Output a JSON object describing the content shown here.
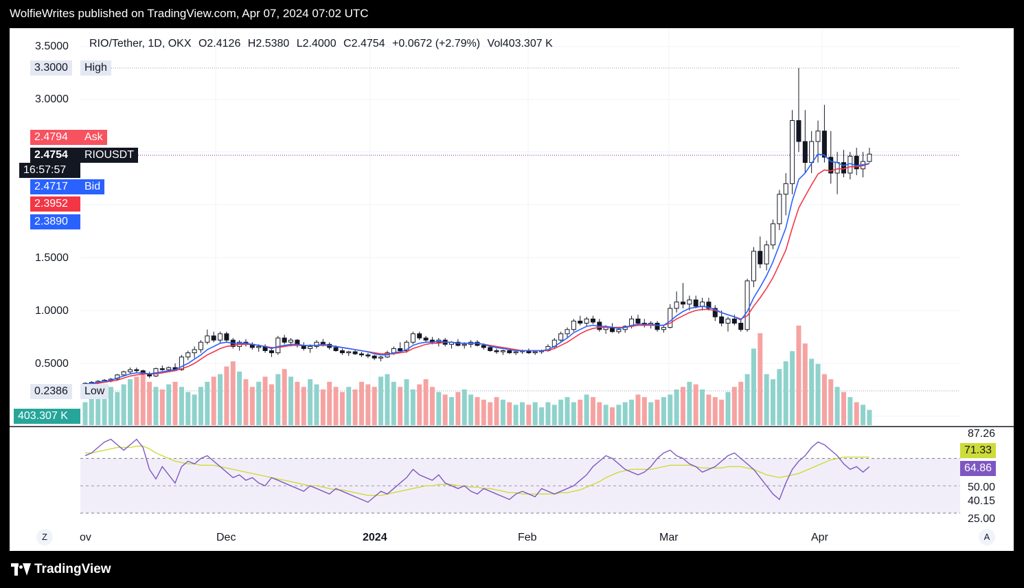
{
  "header": {
    "publisher": "WolfieWrites published on TradingView.com, Apr 07, 2024 07:02 UTC"
  },
  "footer": {
    "brand": "TradingView"
  },
  "chart_data": {
    "type": "candlestick",
    "symbol_line": "RIO/Tether, 1D, OKX",
    "ohlc": {
      "open": "O2.4126",
      "high": "H2.5380",
      "low": "L2.4000",
      "close": "C2.4754",
      "change": "+0.0672 (+2.79%)",
      "volume": "Vol403.307 K"
    },
    "price_axis_labels": [
      "3.5000",
      "3.0000",
      "1.5000",
      "1.0000",
      "0.5000"
    ],
    "time_axis_labels": [
      "ov",
      "Dec",
      "2024",
      "Feb",
      "Mar",
      "Apr"
    ],
    "markers": {
      "high": {
        "value": "3.3000",
        "label": "High"
      },
      "low": {
        "value": "0.2386",
        "label": "Low"
      },
      "ask": {
        "value": "2.4794",
        "label": "Ask"
      },
      "last": {
        "value": "2.4754",
        "label": "RIOUSDT",
        "countdown": "16:57:57"
      },
      "bid": {
        "value": "2.4717",
        "label": "Bid"
      },
      "ma_red": "2.3952",
      "ma_blue": "2.3890",
      "volume": "403.307 K"
    },
    "rsi": {
      "axis_labels": [
        "87.26",
        "50.00",
        "40.15",
        "25.00"
      ],
      "rsi_ma_value": "71.33",
      "rsi_value": "64.86"
    },
    "buttons": {
      "left": "Z",
      "right": "A"
    },
    "colors": {
      "up": "#26a69a",
      "down": "#ef5350",
      "ma_fast": "#2962ff",
      "ma_slow": "#f23645",
      "rsi": "#7e57c2",
      "rsi_ma": "#cddc39",
      "tag_ask": "#f7525f",
      "tag_bid": "#2962ff"
    },
    "candles": [
      [
        0.3,
        0.32,
        0.29,
        0.31
      ],
      [
        0.31,
        0.33,
        0.3,
        0.32
      ],
      [
        0.32,
        0.34,
        0.31,
        0.33
      ],
      [
        0.33,
        0.35,
        0.32,
        0.34
      ],
      [
        0.34,
        0.36,
        0.32,
        0.35
      ],
      [
        0.35,
        0.4,
        0.34,
        0.39
      ],
      [
        0.39,
        0.43,
        0.38,
        0.42
      ],
      [
        0.42,
        0.46,
        0.4,
        0.44
      ],
      [
        0.44,
        0.46,
        0.41,
        0.43
      ],
      [
        0.43,
        0.44,
        0.39,
        0.4
      ],
      [
        0.4,
        0.42,
        0.36,
        0.38
      ],
      [
        0.38,
        0.46,
        0.37,
        0.45
      ],
      [
        0.45,
        0.48,
        0.43,
        0.44
      ],
      [
        0.44,
        0.47,
        0.42,
        0.46
      ],
      [
        0.46,
        0.5,
        0.43,
        0.44
      ],
      [
        0.44,
        0.58,
        0.43,
        0.56
      ],
      [
        0.56,
        0.62,
        0.53,
        0.6
      ],
      [
        0.6,
        0.66,
        0.55,
        0.63
      ],
      [
        0.63,
        0.72,
        0.6,
        0.7
      ],
      [
        0.7,
        0.82,
        0.68,
        0.76
      ],
      [
        0.76,
        0.8,
        0.7,
        0.72
      ],
      [
        0.72,
        0.8,
        0.69,
        0.78
      ],
      [
        0.78,
        0.8,
        0.7,
        0.72
      ],
      [
        0.72,
        0.74,
        0.64,
        0.66
      ],
      [
        0.66,
        0.72,
        0.62,
        0.7
      ],
      [
        0.7,
        0.73,
        0.66,
        0.68
      ],
      [
        0.68,
        0.7,
        0.63,
        0.65
      ],
      [
        0.65,
        0.68,
        0.61,
        0.66
      ],
      [
        0.66,
        0.68,
        0.6,
        0.62
      ],
      [
        0.62,
        0.65,
        0.56,
        0.6
      ],
      [
        0.6,
        0.76,
        0.58,
        0.74
      ],
      [
        0.74,
        0.77,
        0.68,
        0.7
      ],
      [
        0.7,
        0.74,
        0.66,
        0.72
      ],
      [
        0.72,
        0.73,
        0.65,
        0.67
      ],
      [
        0.67,
        0.7,
        0.62,
        0.64
      ],
      [
        0.64,
        0.68,
        0.6,
        0.66
      ],
      [
        0.66,
        0.72,
        0.64,
        0.7
      ],
      [
        0.7,
        0.73,
        0.66,
        0.68
      ],
      [
        0.68,
        0.7,
        0.63,
        0.65
      ],
      [
        0.65,
        0.67,
        0.61,
        0.62
      ],
      [
        0.62,
        0.64,
        0.58,
        0.6
      ],
      [
        0.6,
        0.62,
        0.57,
        0.61
      ],
      [
        0.61,
        0.63,
        0.58,
        0.59
      ],
      [
        0.59,
        0.61,
        0.56,
        0.58
      ],
      [
        0.58,
        0.6,
        0.55,
        0.57
      ],
      [
        0.57,
        0.58,
        0.53,
        0.55
      ],
      [
        0.55,
        0.57,
        0.52,
        0.56
      ],
      [
        0.56,
        0.62,
        0.55,
        0.6
      ],
      [
        0.6,
        0.66,
        0.58,
        0.64
      ],
      [
        0.64,
        0.7,
        0.6,
        0.62
      ],
      [
        0.62,
        0.72,
        0.6,
        0.7
      ],
      [
        0.7,
        0.8,
        0.68,
        0.78
      ],
      [
        0.78,
        0.8,
        0.72,
        0.74
      ],
      [
        0.74,
        0.76,
        0.7,
        0.72
      ],
      [
        0.72,
        0.75,
        0.68,
        0.7
      ],
      [
        0.7,
        0.74,
        0.66,
        0.72
      ],
      [
        0.72,
        0.74,
        0.66,
        0.68
      ],
      [
        0.68,
        0.71,
        0.64,
        0.7
      ],
      [
        0.7,
        0.73,
        0.66,
        0.67
      ],
      [
        0.67,
        0.7,
        0.64,
        0.68
      ],
      [
        0.68,
        0.72,
        0.65,
        0.7
      ],
      [
        0.7,
        0.72,
        0.66,
        0.67
      ],
      [
        0.67,
        0.69,
        0.63,
        0.65
      ],
      [
        0.65,
        0.67,
        0.61,
        0.62
      ],
      [
        0.62,
        0.64,
        0.59,
        0.61
      ],
      [
        0.61,
        0.63,
        0.58,
        0.62
      ],
      [
        0.62,
        0.64,
        0.59,
        0.6
      ],
      [
        0.6,
        0.62,
        0.58,
        0.61
      ],
      [
        0.61,
        0.63,
        0.59,
        0.62
      ],
      [
        0.62,
        0.64,
        0.59,
        0.6
      ],
      [
        0.6,
        0.62,
        0.58,
        0.61
      ],
      [
        0.61,
        0.63,
        0.59,
        0.62
      ],
      [
        0.62,
        0.68,
        0.61,
        0.66
      ],
      [
        0.66,
        0.74,
        0.64,
        0.72
      ],
      [
        0.72,
        0.8,
        0.7,
        0.78
      ],
      [
        0.78,
        0.84,
        0.74,
        0.82
      ],
      [
        0.82,
        0.92,
        0.8,
        0.9
      ],
      [
        0.9,
        0.95,
        0.86,
        0.88
      ],
      [
        0.88,
        0.94,
        0.85,
        0.92
      ],
      [
        0.92,
        0.95,
        0.87,
        0.89
      ],
      [
        0.89,
        0.92,
        0.8,
        0.82
      ],
      [
        0.82,
        0.86,
        0.78,
        0.84
      ],
      [
        0.84,
        0.88,
        0.79,
        0.8
      ],
      [
        0.8,
        0.84,
        0.78,
        0.82
      ],
      [
        0.82,
        0.86,
        0.79,
        0.85
      ],
      [
        0.85,
        0.95,
        0.83,
        0.92
      ],
      [
        0.92,
        0.96,
        0.86,
        0.88
      ],
      [
        0.88,
        0.92,
        0.84,
        0.86
      ],
      [
        0.86,
        0.9,
        0.83,
        0.88
      ],
      [
        0.88,
        0.9,
        0.8,
        0.82
      ],
      [
        0.82,
        0.86,
        0.79,
        0.84
      ],
      [
        0.84,
        1.06,
        0.83,
        1.02
      ],
      [
        1.02,
        1.18,
        0.98,
        1.08
      ],
      [
        1.08,
        1.26,
        1.02,
        1.06
      ],
      [
        1.06,
        1.14,
        1.0,
        1.1
      ],
      [
        1.1,
        1.14,
        1.02,
        1.04
      ],
      [
        1.04,
        1.12,
        1.0,
        1.08
      ],
      [
        1.08,
        1.12,
        1.0,
        1.02
      ],
      [
        1.02,
        1.05,
        0.9,
        0.94
      ],
      [
        0.94,
        1.0,
        0.85,
        0.88
      ],
      [
        0.88,
        0.94,
        0.8,
        0.92
      ],
      [
        0.92,
        0.96,
        0.86,
        0.88
      ],
      [
        0.88,
        0.92,
        0.8,
        0.82
      ],
      [
        0.82,
        1.3,
        0.8,
        1.28
      ],
      [
        1.28,
        1.6,
        1.22,
        1.56
      ],
      [
        1.56,
        1.7,
        1.4,
        1.44
      ],
      [
        1.44,
        1.66,
        1.38,
        1.62
      ],
      [
        1.62,
        1.86,
        1.58,
        1.82
      ],
      [
        1.82,
        2.14,
        1.76,
        2.1
      ],
      [
        2.1,
        2.3,
        1.9,
        2.2
      ],
      [
        2.2,
        2.9,
        2.1,
        2.8
      ],
      [
        2.8,
        3.3,
        2.5,
        2.6
      ],
      [
        2.6,
        2.9,
        2.3,
        2.4
      ],
      [
        2.4,
        2.7,
        2.3,
        2.6
      ],
      [
        2.6,
        2.8,
        2.4,
        2.7
      ],
      [
        2.7,
        2.95,
        2.4,
        2.45
      ],
      [
        2.45,
        2.7,
        2.2,
        2.3
      ],
      [
        2.3,
        2.5,
        2.1,
        2.4
      ],
      [
        2.4,
        2.52,
        2.26,
        2.3
      ],
      [
        2.3,
        2.5,
        2.24,
        2.46
      ],
      [
        2.46,
        2.54,
        2.28,
        2.34
      ],
      [
        2.34,
        2.5,
        2.26,
        2.41
      ],
      [
        2.41,
        2.54,
        2.4,
        2.48
      ]
    ],
    "ma_fast": [
      0.3,
      0.31,
      0.32,
      0.33,
      0.34,
      0.36,
      0.38,
      0.4,
      0.41,
      0.41,
      0.4,
      0.41,
      0.42,
      0.43,
      0.44,
      0.47,
      0.5,
      0.54,
      0.58,
      0.63,
      0.66,
      0.69,
      0.7,
      0.69,
      0.69,
      0.69,
      0.68,
      0.67,
      0.66,
      0.64,
      0.66,
      0.67,
      0.68,
      0.68,
      0.67,
      0.67,
      0.67,
      0.68,
      0.67,
      0.66,
      0.65,
      0.64,
      0.63,
      0.62,
      0.61,
      0.59,
      0.58,
      0.58,
      0.6,
      0.61,
      0.63,
      0.67,
      0.69,
      0.7,
      0.7,
      0.71,
      0.7,
      0.7,
      0.69,
      0.69,
      0.69,
      0.69,
      0.68,
      0.66,
      0.65,
      0.64,
      0.63,
      0.62,
      0.62,
      0.62,
      0.62,
      0.62,
      0.63,
      0.66,
      0.7,
      0.74,
      0.79,
      0.82,
      0.85,
      0.86,
      0.85,
      0.85,
      0.84,
      0.83,
      0.84,
      0.86,
      0.87,
      0.87,
      0.87,
      0.86,
      0.86,
      0.9,
      0.95,
      0.99,
      1.02,
      1.03,
      1.04,
      1.03,
      1.01,
      0.98,
      0.96,
      0.94,
      0.91,
      0.99,
      1.12,
      1.22,
      1.33,
      1.46,
      1.62,
      1.78,
      2.04,
      2.24,
      2.3,
      2.39,
      2.48,
      2.47,
      2.41,
      2.4,
      2.37,
      2.39,
      2.37,
      2.38,
      2.39
    ],
    "ma_slow": [
      0.29,
      0.3,
      0.31,
      0.32,
      0.33,
      0.34,
      0.36,
      0.38,
      0.39,
      0.4,
      0.4,
      0.4,
      0.41,
      0.42,
      0.43,
      0.45,
      0.47,
      0.5,
      0.54,
      0.58,
      0.61,
      0.64,
      0.66,
      0.67,
      0.68,
      0.68,
      0.68,
      0.67,
      0.66,
      0.65,
      0.65,
      0.66,
      0.67,
      0.67,
      0.67,
      0.67,
      0.67,
      0.67,
      0.67,
      0.66,
      0.65,
      0.64,
      0.63,
      0.62,
      0.61,
      0.6,
      0.59,
      0.59,
      0.59,
      0.6,
      0.61,
      0.64,
      0.66,
      0.68,
      0.69,
      0.69,
      0.7,
      0.7,
      0.69,
      0.69,
      0.69,
      0.69,
      0.68,
      0.67,
      0.66,
      0.65,
      0.64,
      0.63,
      0.62,
      0.62,
      0.62,
      0.62,
      0.62,
      0.64,
      0.67,
      0.7,
      0.74,
      0.78,
      0.81,
      0.83,
      0.84,
      0.84,
      0.84,
      0.84,
      0.84,
      0.85,
      0.86,
      0.86,
      0.86,
      0.86,
      0.86,
      0.88,
      0.92,
      0.95,
      0.98,
      1.0,
      1.01,
      1.01,
      1.0,
      0.98,
      0.96,
      0.94,
      0.92,
      0.95,
      1.04,
      1.12,
      1.21,
      1.31,
      1.44,
      1.57,
      1.78,
      1.97,
      2.08,
      2.19,
      2.29,
      2.33,
      2.32,
      2.34,
      2.34,
      2.36,
      2.36,
      2.37,
      2.39
    ],
    "volume": [
      18,
      22,
      25,
      28,
      30,
      26,
      32,
      36,
      38,
      40,
      34,
      30,
      28,
      32,
      34,
      30,
      26,
      24,
      30,
      34,
      38,
      40,
      46,
      50,
      42,
      36,
      30,
      34,
      38,
      32,
      40,
      44,
      38,
      34,
      30,
      36,
      32,
      28,
      34,
      30,
      26,
      30,
      28,
      34,
      32,
      30,
      38,
      40,
      34,
      30,
      36,
      28,
      32,
      36,
      30,
      26,
      24,
      22,
      26,
      28,
      24,
      22,
      20,
      18,
      22,
      20,
      18,
      16,
      18,
      16,
      18,
      14,
      18,
      16,
      20,
      22,
      18,
      20,
      24,
      22,
      18,
      16,
      14,
      16,
      18,
      20,
      24,
      22,
      18,
      20,
      22,
      24,
      28,
      30,
      34,
      32,
      28,
      24,
      22,
      20,
      26,
      30,
      34,
      40,
      60,
      72,
      40,
      36,
      44,
      50,
      58,
      78,
      64,
      52,
      48,
      40,
      36,
      30,
      26,
      22,
      18,
      16,
      12
    ],
    "volume_up": [
      1,
      1,
      1,
      1,
      1,
      1,
      1,
      1,
      0,
      0,
      0,
      1,
      0,
      1,
      0,
      1,
      1,
      1,
      1,
      1,
      0,
      1,
      0,
      0,
      1,
      0,
      0,
      1,
      0,
      0,
      1,
      0,
      1,
      0,
      0,
      1,
      1,
      0,
      0,
      0,
      0,
      1,
      0,
      0,
      0,
      0,
      1,
      1,
      1,
      0,
      1,
      1,
      0,
      0,
      0,
      1,
      0,
      1,
      0,
      1,
      1,
      0,
      0,
      0,
      0,
      1,
      0,
      1,
      1,
      0,
      1,
      1,
      1,
      1,
      1,
      1,
      1,
      0,
      1,
      0,
      0,
      1,
      0,
      1,
      1,
      1,
      0,
      0,
      1,
      0,
      1,
      1,
      1,
      0,
      1,
      0,
      1,
      0,
      0,
      0,
      1,
      0,
      0,
      1,
      1,
      0,
      1,
      1,
      1,
      1,
      1,
      0,
      0,
      1,
      1,
      0,
      0,
      1,
      0,
      1,
      0,
      1,
      1
    ],
    "rsi_values": [
      72,
      74,
      78,
      82,
      84,
      80,
      76,
      80,
      84,
      78,
      62,
      55,
      64,
      58,
      52,
      64,
      68,
      66,
      70,
      72,
      68,
      64,
      60,
      56,
      58,
      54,
      56,
      52,
      50,
      56,
      54,
      52,
      50,
      48,
      46,
      50,
      48,
      46,
      44,
      48,
      46,
      44,
      42,
      40,
      38,
      42,
      46,
      44,
      48,
      52,
      56,
      62,
      58,
      56,
      54,
      58,
      52,
      50,
      48,
      50,
      46,
      44,
      48,
      46,
      44,
      42,
      40,
      44,
      46,
      44,
      42,
      48,
      46,
      44,
      46,
      48,
      50,
      54,
      58,
      64,
      68,
      72,
      70,
      66,
      62,
      60,
      58,
      60,
      64,
      70,
      74,
      76,
      72,
      70,
      66,
      64,
      60,
      62,
      64,
      68,
      72,
      74,
      70,
      66,
      62,
      56,
      50,
      44,
      40,
      52,
      62,
      68,
      72,
      78,
      82,
      80,
      76,
      72,
      66,
      62,
      64,
      60,
      64
    ],
    "rsi_ma": [
      74,
      74,
      75,
      76,
      77,
      78,
      78,
      78,
      79,
      79,
      77,
      74,
      72,
      70,
      68,
      67,
      66,
      66,
      65,
      65,
      65,
      64,
      63,
      62,
      61,
      60,
      59,
      58,
      57,
      56,
      55,
      54,
      53,
      52,
      51,
      50,
      50,
      49,
      48,
      47,
      47,
      46,
      45,
      44,
      43,
      43,
      43,
      44,
      45,
      46,
      47,
      48,
      49,
      50,
      50,
      51,
      51,
      51,
      50,
      50,
      49,
      49,
      48,
      48,
      47,
      46,
      45,
      45,
      44,
      44,
      44,
      44,
      44,
      44,
      45,
      45,
      46,
      47,
      49,
      51,
      53,
      56,
      58,
      60,
      61,
      62,
      62,
      62,
      62,
      63,
      64,
      65,
      65,
      65,
      65,
      64,
      63,
      63,
      63,
      63,
      64,
      64,
      64,
      63,
      62,
      60,
      58,
      57,
      56,
      57,
      58,
      59,
      61,
      63,
      65,
      67,
      69,
      70,
      71,
      71,
      71,
      71,
      71
    ]
  }
}
